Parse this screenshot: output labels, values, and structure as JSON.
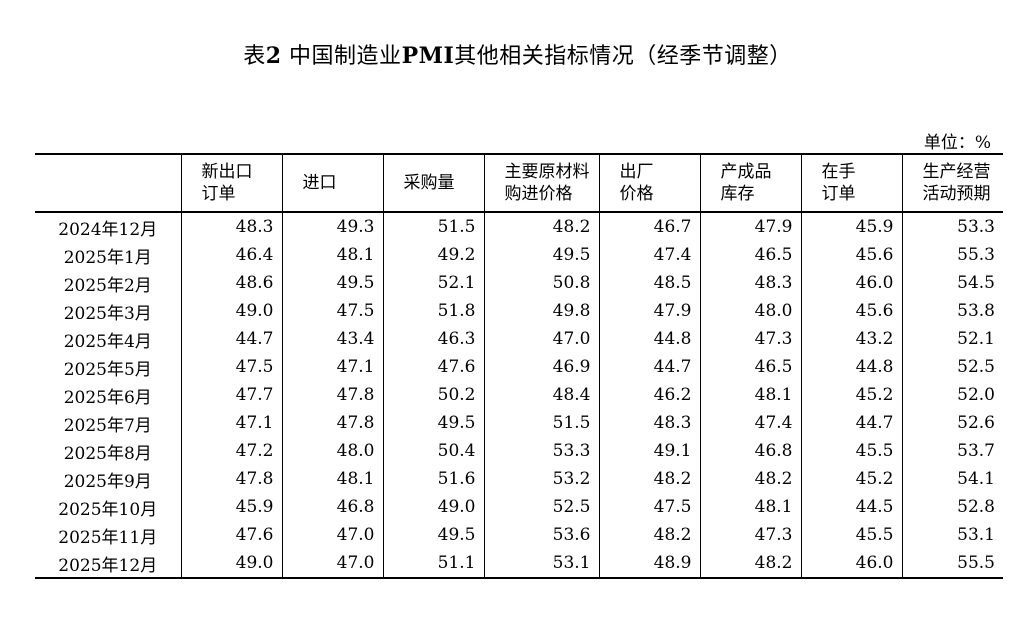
{
  "title": {
    "prefix": "表",
    "number": "2",
    "part1": " 中国制造业",
    "pmi": "PMI",
    "part2": "其他相关指标情况（经季节调整）"
  },
  "unit": "单位：%",
  "columns": [
    {
      "l1": "",
      "l2": ""
    },
    {
      "l1": "新出口",
      "l2": "订单"
    },
    {
      "l1": "进口",
      "l2": ""
    },
    {
      "l1": "采购量",
      "l2": ""
    },
    {
      "l1": "主要原材料",
      "l2": "购进价格"
    },
    {
      "l1": "出厂",
      "l2": "价格"
    },
    {
      "l1": "产成品",
      "l2": "库存"
    },
    {
      "l1": "在手",
      "l2": "订单"
    },
    {
      "l1": "生产经营",
      "l2": "活动预期"
    }
  ],
  "rows": [
    {
      "period": "2024年12月",
      "v": [
        "48.3",
        "49.3",
        "51.5",
        "48.2",
        "46.7",
        "47.9",
        "45.9",
        "53.3"
      ]
    },
    {
      "period": "2025年1月",
      "v": [
        "46.4",
        "48.1",
        "49.2",
        "49.5",
        "47.4",
        "46.5",
        "45.6",
        "55.3"
      ]
    },
    {
      "period": "2025年2月",
      "v": [
        "48.6",
        "49.5",
        "52.1",
        "50.8",
        "48.5",
        "48.3",
        "46.0",
        "54.5"
      ]
    },
    {
      "period": "2025年3月",
      "v": [
        "49.0",
        "47.5",
        "51.8",
        "49.8",
        "47.9",
        "48.0",
        "45.6",
        "53.8"
      ]
    },
    {
      "period": "2025年4月",
      "v": [
        "44.7",
        "43.4",
        "46.3",
        "47.0",
        "44.8",
        "47.3",
        "43.2",
        "52.1"
      ]
    },
    {
      "period": "2025年5月",
      "v": [
        "47.5",
        "47.1",
        "47.6",
        "46.9",
        "44.7",
        "46.5",
        "44.8",
        "52.5"
      ]
    },
    {
      "period": "2025年6月",
      "v": [
        "47.7",
        "47.8",
        "50.2",
        "48.4",
        "46.2",
        "48.1",
        "45.2",
        "52.0"
      ]
    },
    {
      "period": "2025年7月",
      "v": [
        "47.1",
        "47.8",
        "49.5",
        "51.5",
        "48.3",
        "47.4",
        "44.7",
        "52.6"
      ]
    },
    {
      "period": "2025年8月",
      "v": [
        "47.2",
        "48.0",
        "50.4",
        "53.3",
        "49.1",
        "46.8",
        "45.5",
        "53.7"
      ]
    },
    {
      "period": "2025年9月",
      "v": [
        "47.8",
        "48.1",
        "51.6",
        "53.2",
        "48.2",
        "48.2",
        "45.2",
        "54.1"
      ]
    },
    {
      "period": "2025年10月",
      "v": [
        "45.9",
        "46.8",
        "49.0",
        "52.5",
        "47.5",
        "48.1",
        "44.5",
        "52.8"
      ]
    },
    {
      "period": "2025年11月",
      "v": [
        "47.6",
        "47.0",
        "49.5",
        "53.6",
        "48.2",
        "47.3",
        "45.5",
        "53.1"
      ]
    },
    {
      "period": "2025年12月",
      "v": [
        "49.0",
        "47.0",
        "51.1",
        "53.1",
        "48.9",
        "48.2",
        "46.0",
        "55.5"
      ]
    }
  ]
}
